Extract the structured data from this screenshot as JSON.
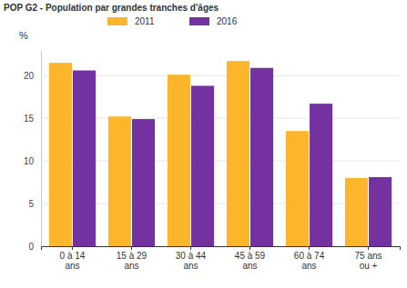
{
  "chart_data": {
    "type": "bar",
    "title": "POP G2 - Population par grandes tranches d'âges",
    "ylabel": "%",
    "categories": [
      "0 à 14 ans",
      "15 à 29 ans",
      "30 à 44 ans",
      "45 à 59 ans",
      "60 à 74 ans",
      "75 ans ou +"
    ],
    "series": [
      {
        "name": "2011",
        "color": "#fdb62c",
        "values": [
          21.5,
          15.2,
          20.1,
          21.7,
          13.5,
          8.0
        ]
      },
      {
        "name": "2016",
        "color": "#7332a0",
        "values": [
          20.6,
          14.9,
          18.8,
          20.9,
          16.7,
          8.1
        ]
      }
    ],
    "ylim": [
      0,
      23
    ],
    "yticks": [
      0,
      5,
      10,
      15,
      20
    ],
    "grid": true,
    "legend": "top"
  }
}
